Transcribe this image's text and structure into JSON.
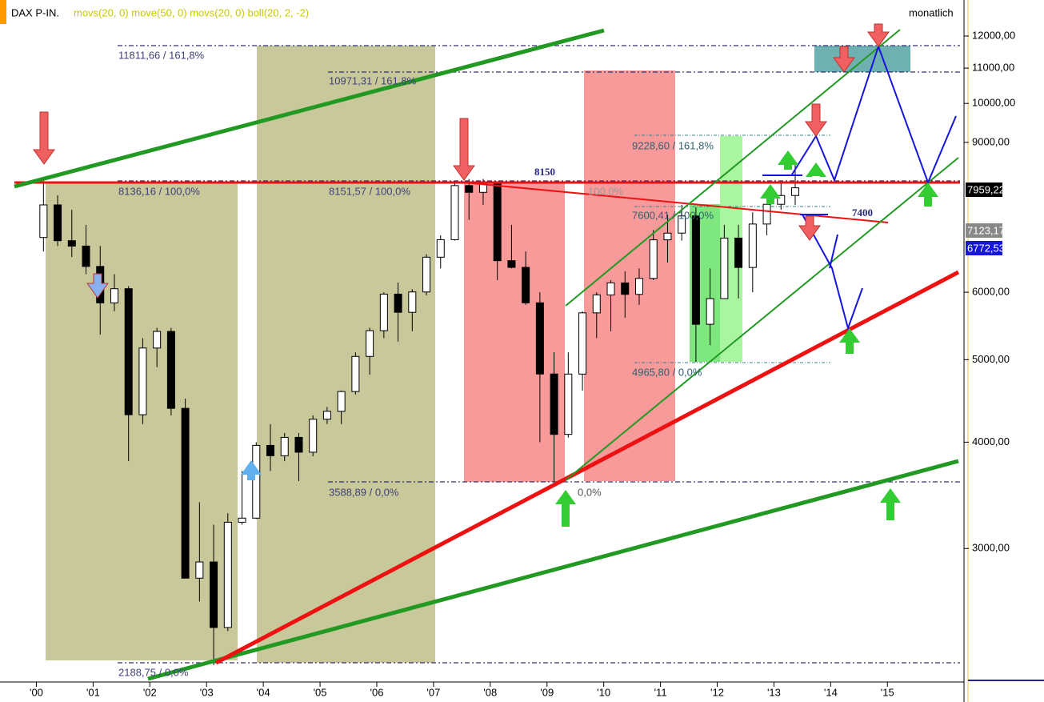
{
  "chart_data": {
    "type": "candlestick",
    "header": {
      "symbol": "DAX P-IN.",
      "indicators": "movs(20, 0) move(50, 0) movs(20, 0) boll(20, 2, -2)",
      "period": "monatlich"
    },
    "log_scale": true,
    "xlim": [
      1999.5,
      2016.35
    ],
    "xticks": [
      {
        "value": 2000,
        "label": "'00"
      },
      {
        "value": 2001,
        "label": "'01"
      },
      {
        "value": 2002,
        "label": "'02"
      },
      {
        "value": 2003,
        "label": "'03"
      },
      {
        "value": 2004,
        "label": "'04"
      },
      {
        "value": 2005,
        "label": "'05"
      },
      {
        "value": 2006,
        "label": "'06"
      },
      {
        "value": 2007,
        "label": "'07"
      },
      {
        "value": 2008,
        "label": "'08"
      },
      {
        "value": 2009,
        "label": "'09"
      },
      {
        "value": 2010,
        "label": "'10"
      },
      {
        "value": 2011,
        "label": "'11"
      },
      {
        "value": 2012,
        "label": "'12"
      },
      {
        "value": 2013,
        "label": "'13"
      },
      {
        "value": 2014,
        "label": "'14"
      },
      {
        "value": 2015,
        "label": "'15"
      }
    ],
    "ylim": [
      2100,
      13000
    ],
    "yticks": [
      {
        "value": 3000,
        "label": "3000,00"
      },
      {
        "value": 4000,
        "label": "4000,00"
      },
      {
        "value": 5000,
        "label": "5000,00"
      },
      {
        "value": 6000,
        "label": "6000,00"
      },
      {
        "value": 9000,
        "label": "9000,00"
      },
      {
        "value": 10000,
        "label": "10000,00"
      },
      {
        "value": 11000,
        "label": "11000,00"
      },
      {
        "value": 12000,
        "label": "12000,00"
      }
    ],
    "x": [
      2000.125,
      2000.375,
      2000.625,
      2000.875,
      2001.125,
      2001.375,
      2001.625,
      2001.875,
      2002.125,
      2002.375,
      2002.625,
      2002.875,
      2003.125,
      2003.375,
      2003.625,
      2003.875,
      2004.125,
      2004.375,
      2004.625,
      2004.875,
      2005.125,
      2005.375,
      2005.625,
      2005.875,
      2006.125,
      2006.375,
      2006.625,
      2006.875,
      2007.125,
      2007.375,
      2007.625,
      2007.875,
      2008.125,
      2008.375,
      2008.625,
      2008.875,
      2009.125,
      2009.375,
      2009.625,
      2009.875,
      2010.125,
      2010.375,
      2010.625,
      2010.875,
      2011.125,
      2011.375,
      2011.625,
      2011.875,
      2012.125,
      2012.375,
      2012.625,
      2012.875,
      2013.125,
      2013.375
    ],
    "open": [
      6958,
      7599,
      6898,
      6798,
      6434,
      5830,
      6058,
      4308,
      5160,
      5397,
      4383,
      2769,
      2893,
      2423,
      3221,
      3257,
      3965,
      3856,
      4052,
      3893,
      4256,
      4348,
      4587,
      5044,
      5408,
      5970,
      5683,
      6005,
      6597,
      6917,
      8007,
      7862,
      8067,
      6535,
      6418,
      5831,
      4810,
      4085,
      4809,
      5675,
      5957,
      6154,
      5966,
      6229,
      6914,
      7041,
      7376,
      5502,
      5898,
      6947,
      6416,
      7216,
      7612,
      7795
    ],
    "high": [
      8136,
      7800,
      7500,
      7200,
      6800,
      6300,
      6100,
      5300,
      5450,
      5450,
      4500,
      3400,
      3200,
      3300,
      3700,
      4000,
      4200,
      4100,
      4100,
      4300,
      4400,
      4600,
      5100,
      5450,
      6000,
      6160,
      6050,
      6650,
      7000,
      8100,
      8150,
      8152,
      8100,
      7200,
      6700,
      6000,
      5100,
      5100,
      5700,
      6000,
      6200,
      6350,
      6400,
      7100,
      7400,
      7600,
      7550,
      6400,
      7200,
      7200,
      7450,
      7700,
      8100,
      8557
    ],
    "low": [
      6700,
      6800,
      6600,
      6300,
      5350,
      5700,
      3800,
      4200,
      4900,
      4300,
      2800,
      2600,
      2189,
      2400,
      3200,
      3250,
      3700,
      3800,
      3600,
      3850,
      4200,
      4200,
      4550,
      4800,
      5300,
      5250,
      5400,
      5950,
      6400,
      6900,
      7300,
      7600,
      6200,
      6400,
      5800,
      4000,
      3589,
      4050,
      4600,
      5300,
      5400,
      5600,
      5800,
      6200,
      6500,
      6900,
      4966,
      5200,
      5900,
      5900,
      6000,
      7000,
      7500,
      7600
    ],
    "close": [
      7599,
      6898,
      6798,
      6434,
      5830,
      6058,
      4308,
      5160,
      5397,
      4383,
      2769,
      2893,
      2423,
      3221,
      3257,
      3965,
      3856,
      4052,
      3893,
      4256,
      4348,
      4587,
      5044,
      5408,
      5970,
      5683,
      6005,
      6597,
      6917,
      8007,
      7862,
      8067,
      6535,
      6418,
      5831,
      4810,
      4085,
      4809,
      5675,
      5957,
      6154,
      5966,
      6229,
      6914,
      7041,
      7376,
      5502,
      5898,
      6947,
      6416,
      7216,
      7612,
      7795,
      7959
    ],
    "up_color": "#ffffff",
    "down_color": "#000000",
    "annotations": [
      "11811,66 / 161,8%",
      "10971,31 / 161,8%",
      "8136,16 / 100,0%",
      "8151,57 / 100,0%",
      "100,0%",
      "8150",
      "9228,60 / 161,8%",
      "7600,41 / 100,0%",
      "7400",
      "4965,80 / 0,0%",
      "3588,89 / 0,0%",
      "0,0%",
      "2188,75 / 0,0%"
    ],
    "price_labels": [
      "7959,22",
      "7123,17",
      "6772,53"
    ]
  }
}
